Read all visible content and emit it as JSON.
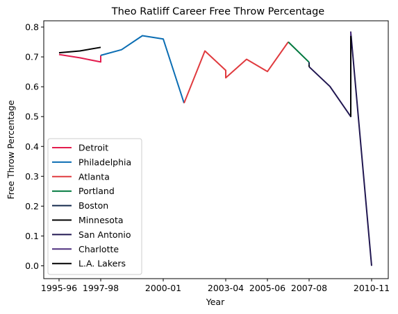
{
  "chart_data": {
    "type": "line",
    "title": "Theo Ratliff Career Free Throw Percentage",
    "xlabel": "Year",
    "ylabel": "Free Throw Percentage",
    "x_ticks": [
      "1995-96",
      "1997-98",
      "2000-01",
      "2003-04",
      "2005-06",
      "2007-08",
      "2010-11"
    ],
    "y_ticks": [
      "0.0",
      "0.1",
      "0.2",
      "0.3",
      "0.4",
      "0.5",
      "0.6",
      "0.7",
      "0.8"
    ],
    "xlim": [
      1995.05,
      2011.1
    ],
    "ylim": [
      -0.04,
      0.825
    ],
    "grid": false,
    "legend_position": "lower-left",
    "series": [
      {
        "name": "Detroit",
        "color": "#e31b4d",
        "x": [
          1995.0,
          1996.0,
          1997.0,
          1997.0
        ],
        "y": [
          0.708,
          0.697,
          0.683,
          0.705
        ]
      },
      {
        "name": "Philadelphia",
        "color": "#0a6db3",
        "x": [
          1997.0,
          1998.0,
          1999.0,
          2000.0,
          2001.0
        ],
        "y": [
          0.705,
          0.724,
          0.771,
          0.76,
          0.545
        ]
      },
      {
        "name": "Atlanta",
        "color": "#e03a3e",
        "x": [
          2001.0,
          2002.0,
          2003.0,
          2003.0,
          2004.0,
          2005.0,
          2006.0
        ],
        "y": [
          0.545,
          0.72,
          0.655,
          0.63,
          0.692,
          0.651,
          0.75
        ]
      },
      {
        "name": "Portland",
        "color": "#00783e",
        "x": [
          2006.0,
          2007.0
        ],
        "y": [
          0.75,
          0.682
        ]
      },
      {
        "name": "Boston",
        "color": "#13294b",
        "x": [
          2007.0,
          2007.0
        ],
        "y": [
          0.682,
          0.672
        ]
      },
      {
        "name": "Minnesota",
        "color": "#000000",
        "x": [
          2007.0,
          2007.0
        ],
        "y": [
          0.672,
          0.667
        ]
      },
      {
        "name": "San Antonio",
        "color": "#201650",
        "x": [
          2007.0,
          2008.0,
          2009.0,
          2009.0,
          2010.0
        ],
        "y": [
          0.667,
          0.601,
          0.5,
          0.783,
          0.0
        ]
      },
      {
        "name": "Charlotte",
        "color": "#4d2f7e",
        "x": [
          2009.0,
          2009.0
        ],
        "y": [
          0.783,
          0.77
        ]
      },
      {
        "name": "L.A. Lakers",
        "color": "#000000",
        "x": [
          2009.0,
          2009.0
        ],
        "y": [
          0.77,
          0.5
        ]
      }
    ],
    "extra_segments": [
      {
        "color": "#000000",
        "x": [
          1995.0,
          1996.0,
          1997.0
        ],
        "y": [
          0.714,
          0.72,
          0.732
        ]
      }
    ]
  }
}
